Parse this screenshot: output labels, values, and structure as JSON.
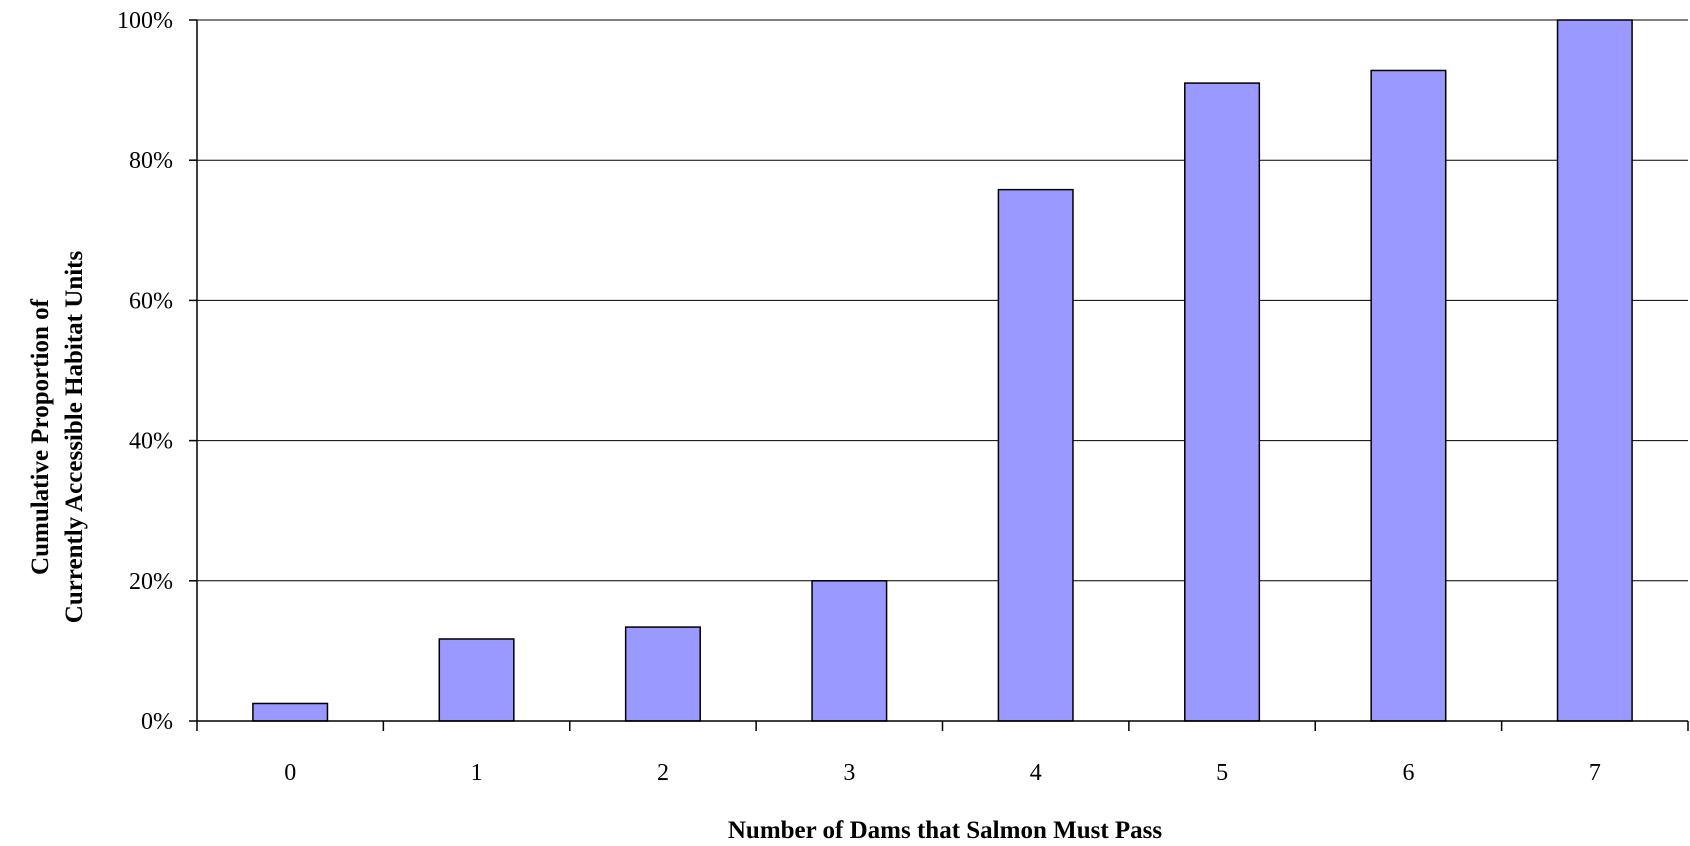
{
  "chart_data": {
    "type": "bar",
    "categories": [
      "0",
      "1",
      "2",
      "3",
      "4",
      "5",
      "6",
      "7"
    ],
    "values": [
      2.5,
      11.7,
      13.4,
      20.0,
      75.8,
      91.0,
      92.8,
      100.0
    ],
    "xlabel": "Number of Dams that Salmon Must Pass",
    "ylabel_lines": [
      "Cumulative Proportion of",
      "Currently Accessible Habitat Units"
    ],
    "ylim": [
      0,
      100
    ],
    "yticks": [
      "0%",
      "20%",
      "40%",
      "60%",
      "80%",
      "100%"
    ],
    "ytick_values": [
      0,
      20,
      40,
      60,
      80,
      100
    ],
    "grid": true,
    "legend": "none",
    "colors": {
      "bar": "#9999ff",
      "bar_border": "#000000"
    }
  }
}
